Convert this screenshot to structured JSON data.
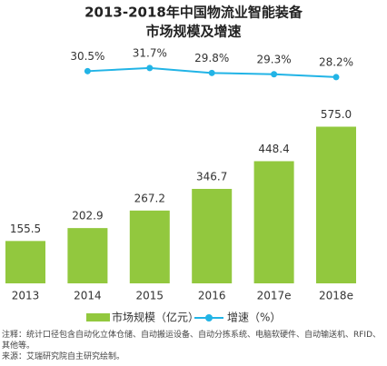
{
  "chart_data": {
    "type": "bar_line",
    "title": "2013-2018年中国物流业智能装备",
    "subtitle": "市场规模及增速",
    "categories": [
      "2013",
      "2014",
      "2015",
      "2016",
      "2017e",
      "2018e"
    ],
    "ylim": [
      0,
      600
    ],
    "y2lim": [
      0,
      40
    ],
    "series": [
      {
        "name": "市场规模（亿元）",
        "type": "bar",
        "color": "#92c83e",
        "values": [
          155.5,
          202.9,
          267.2,
          346.7,
          448.4,
          575.0
        ],
        "value_labels": [
          "155.5",
          "202.9",
          "267.2",
          "346.7",
          "448.4",
          "575.0"
        ]
      },
      {
        "name": "增速（%）",
        "type": "line",
        "axis": "y2",
        "color": "#22b4e6",
        "values": [
          null,
          30.5,
          31.7,
          29.8,
          29.3,
          28.2
        ],
        "value_labels": [
          null,
          "30.5%",
          "31.7%",
          "29.8%",
          "29.3%",
          "28.2%"
        ]
      }
    ],
    "notes": [
      "注释：统计口径包含自动化立体仓储、自动搬运设备、自动分拣系统、电脑软硬件、自动输送机、RFID、其他等。",
      "来源：艾瑞研究院自主研究绘制。"
    ]
  }
}
